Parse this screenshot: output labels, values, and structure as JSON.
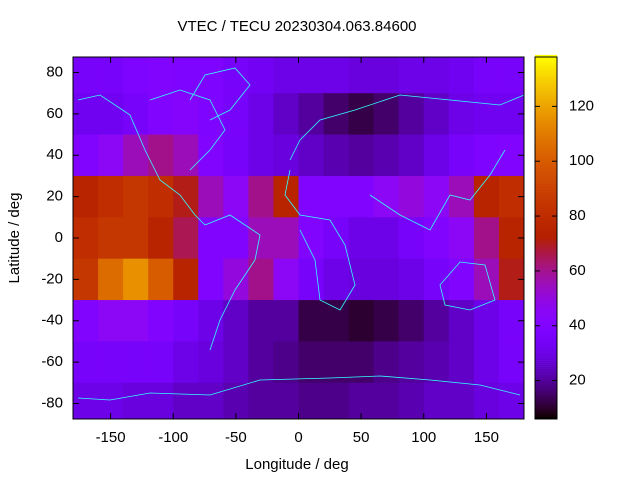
{
  "chart_data": {
    "type": "heatmap",
    "title": "VTEC / TECU 20230304.063.84600",
    "x_label": "Longitude / deg",
    "y_label": "Latitude / deg",
    "xlim": [
      -180,
      180
    ],
    "ylim": [
      -87.5,
      87.5
    ],
    "xticks": [
      -150,
      -100,
      -50,
      0,
      50,
      100,
      150
    ],
    "yticks": [
      -80,
      -60,
      -40,
      -20,
      0,
      20,
      40,
      60,
      80
    ],
    "xbins": [
      -180,
      -160,
      -140,
      -120,
      -100,
      -80,
      -60,
      -40,
      -20,
      0,
      20,
      40,
      60,
      80,
      100,
      120,
      140,
      160,
      180
    ],
    "ybins": [
      87.5,
      70,
      50,
      30,
      10,
      -10,
      -30,
      -50,
      -70,
      -87.5
    ],
    "values": [
      [
        35,
        35,
        38,
        40,
        38,
        38,
        35,
        33,
        30,
        30,
        30,
        28,
        28,
        30,
        30,
        32,
        35,
        35
      ],
      [
        32,
        32,
        35,
        40,
        42,
        38,
        35,
        30,
        25,
        20,
        15,
        12,
        15,
        20,
        25,
        30,
        32,
        32
      ],
      [
        40,
        45,
        55,
        60,
        55,
        40,
        35,
        30,
        28,
        25,
        22,
        20,
        22,
        25,
        30,
        35,
        38,
        40
      ],
      [
        75,
        80,
        85,
        80,
        70,
        55,
        45,
        60,
        75,
        40,
        40,
        40,
        45,
        50,
        45,
        55,
        75,
        80
      ],
      [
        80,
        85,
        85,
        75,
        65,
        40,
        40,
        55,
        55,
        40,
        35,
        30,
        30,
        35,
        40,
        45,
        60,
        75
      ],
      [
        85,
        105,
        115,
        100,
        75,
        40,
        50,
        60,
        45,
        35,
        30,
        28,
        28,
        30,
        35,
        40,
        55,
        70
      ],
      [
        40,
        45,
        45,
        40,
        35,
        30,
        25,
        20,
        20,
        12,
        12,
        10,
        12,
        15,
        20,
        25,
        30,
        35
      ],
      [
        35,
        35,
        35,
        35,
        30,
        28,
        25,
        20,
        18,
        15,
        15,
        15,
        18,
        20,
        22,
        25,
        30,
        35
      ],
      [
        30,
        30,
        28,
        28,
        25,
        25,
        22,
        20,
        20,
        18,
        18,
        20,
        20,
        22,
        25,
        25,
        28,
        30
      ]
    ],
    "zlim": [
      6,
      138
    ],
    "zticks": [
      20,
      40,
      60,
      80,
      100,
      120
    ]
  }
}
